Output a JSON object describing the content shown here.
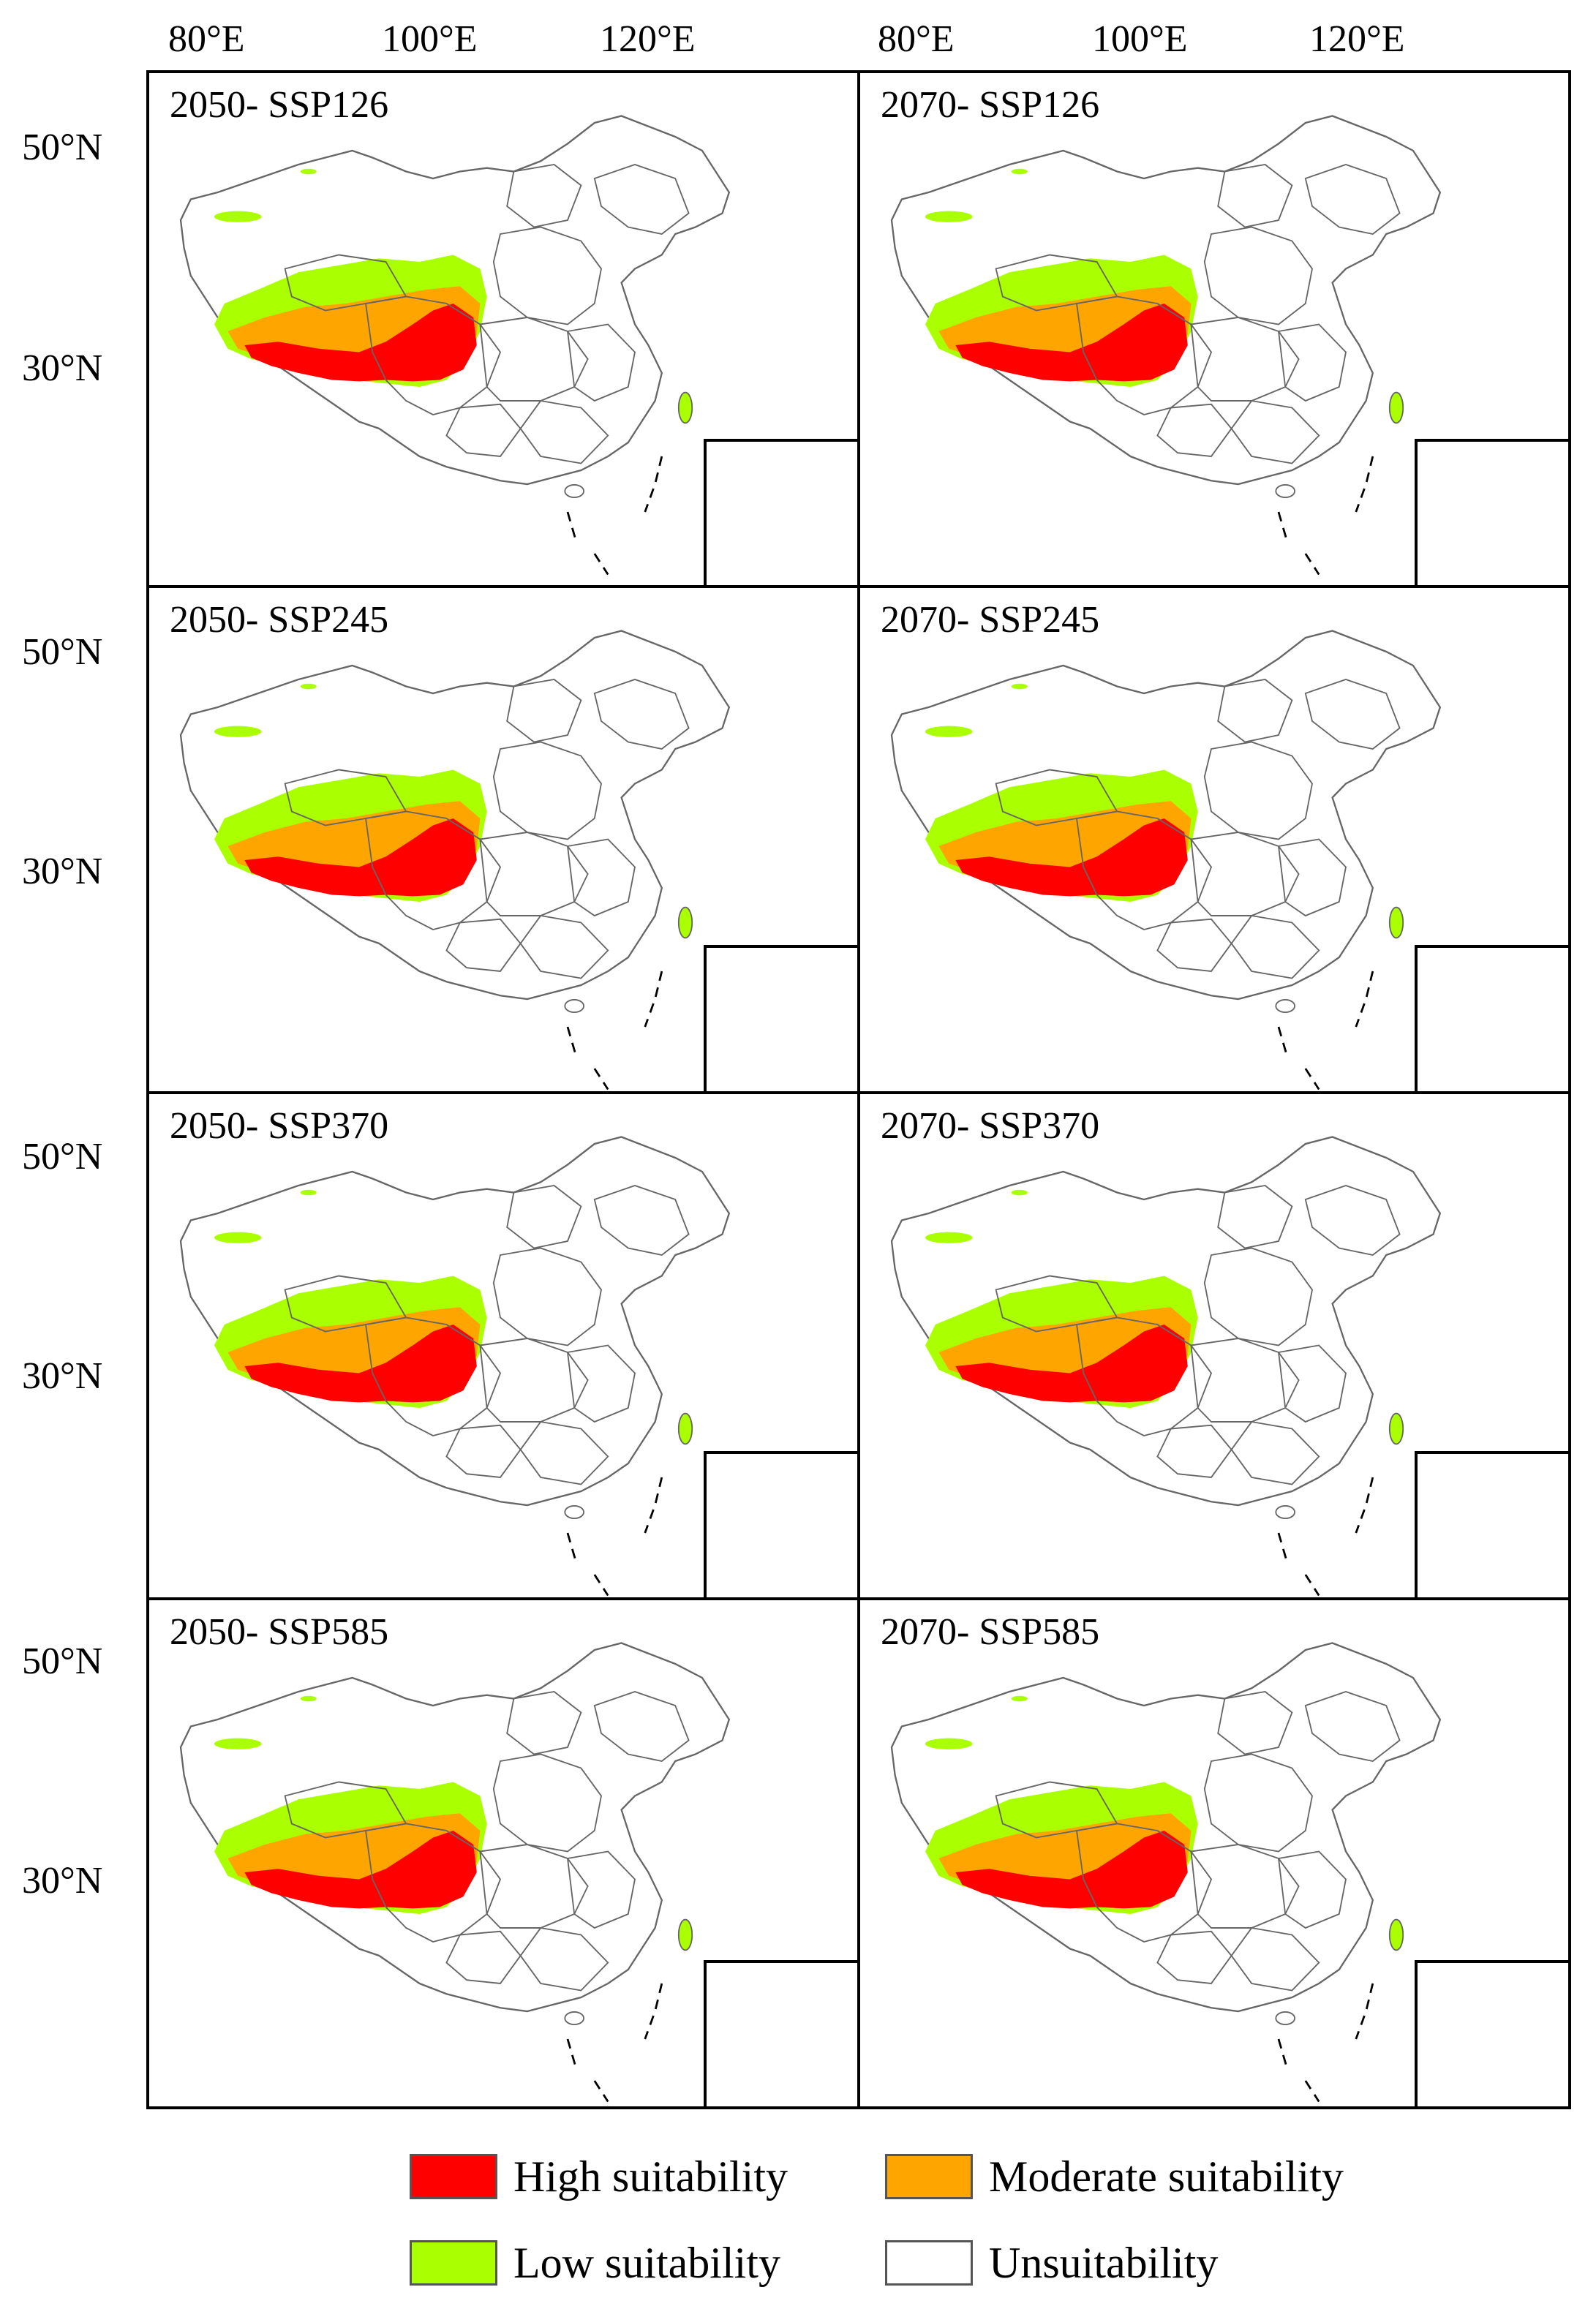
{
  "x_axis_labels": [
    "80°E",
    "100°E",
    "120°E"
  ],
  "y_axis_labels": [
    "50°N",
    "30°N"
  ],
  "panels": [
    {
      "title": "2050- SSP126"
    },
    {
      "title": "2070- SSP126"
    },
    {
      "title": "2050- SSP245"
    },
    {
      "title": "2070- SSP245"
    },
    {
      "title": "2050- SSP370"
    },
    {
      "title": "2070- SSP370"
    },
    {
      "title": "2050- SSP585"
    },
    {
      "title": "2070- SSP585"
    }
  ],
  "legend": {
    "high": "High suitability",
    "moderate": "Moderate suitability",
    "low": "Low suitability",
    "unsuitable": "Unsuitability"
  },
  "colors": {
    "high": "#ff0000",
    "moderate": "#ffa500",
    "low": "#aaff00",
    "unsuitable": "#ffffff",
    "border": "#666666"
  }
}
